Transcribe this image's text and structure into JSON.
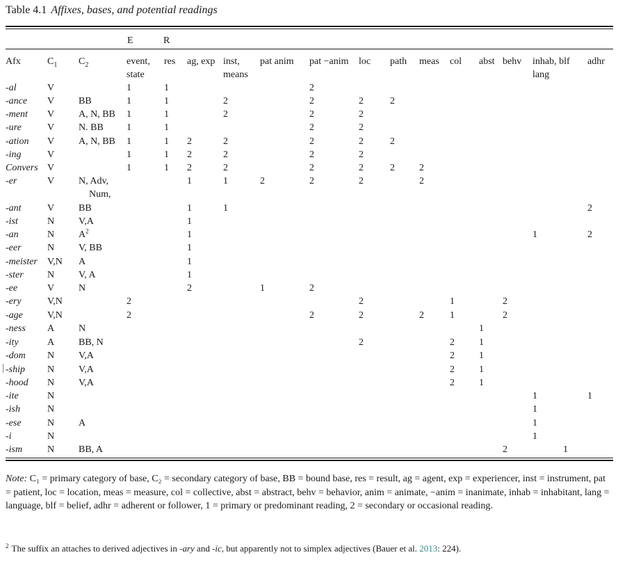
{
  "caption": {
    "label": "Table 4.1",
    "title": "Affixes, bases, and potential readings"
  },
  "headers": {
    "group": {
      "E": "E",
      "R": "R"
    },
    "afx": "Afx",
    "c1": {
      "base": "C",
      "sub": "1"
    },
    "c2": {
      "base": "C",
      "sub": "2"
    },
    "event": [
      "event,",
      "state"
    ],
    "res": "res",
    "ag_exp": "ag, exp",
    "inst": [
      "inst,",
      "means"
    ],
    "pat_anim": "pat anim",
    "pat_inanim": "pat −anim",
    "loc": "loc",
    "path": "path",
    "meas": "meas",
    "col": "col",
    "abst": "abst",
    "behv": "behv",
    "inhab": [
      "inhab, blf",
      "lang"
    ],
    "adhr": "adhr"
  },
  "columns": [
    "event",
    "res",
    "ag",
    "inst",
    "patanim",
    "patinanim",
    "loc",
    "path",
    "meas",
    "col",
    "abst",
    "behv",
    "inhab",
    "blf",
    "adhr"
  ],
  "rows": [
    {
      "afx": "-al",
      "c1": "V",
      "c2": [],
      "event": "1",
      "res": "1",
      "patinanim": "2"
    },
    {
      "afx": "-ance",
      "c1": "V",
      "c2": [
        "BB"
      ],
      "event": "1",
      "res": "1",
      "inst": "2",
      "patinanim": "2",
      "loc": "2",
      "path": "2"
    },
    {
      "afx": "-ment",
      "c1": "V",
      "c2": [
        "A, N, BB"
      ],
      "event": "1",
      "res": "1",
      "inst": "2",
      "patinanim": "2",
      "loc": "2"
    },
    {
      "afx": "-ure",
      "c1": "V",
      "c2": [
        "N. BB"
      ],
      "event": "1",
      "res": "1",
      "patinanim": "2",
      "loc": "2"
    },
    {
      "afx": "-ation",
      "c1": "V",
      "c2": [
        "A, N, BB"
      ],
      "event": "1",
      "res": "1",
      "ag": "2",
      "inst": "2",
      "patinanim": "2",
      "loc": "2",
      "path": "2"
    },
    {
      "afx": "-ing",
      "c1": "V",
      "c2": [],
      "event": "1",
      "res": "1",
      "ag": "2",
      "inst": "2",
      "patinanim": "2",
      "loc": "2"
    },
    {
      "afx": "Convers",
      "c1": "V",
      "c2": [],
      "event": "1",
      "res": "1",
      "ag": "2",
      "inst": "2",
      "patinanim": "2",
      "loc": "2",
      "path": "2",
      "meas": "2"
    },
    {
      "afx": "-er",
      "c1": "V",
      "c2": [
        "N, Adv,",
        "Num,"
      ],
      "ag": "1",
      "inst": "1",
      "patanim": "2",
      "patinanim": "2",
      "loc": "2",
      "meas": "2"
    },
    {
      "afx": "-ant",
      "c1": "V",
      "c2": [
        "BB"
      ],
      "ag": "1",
      "inst": "1",
      "adhr": "2"
    },
    {
      "afx": "-ist",
      "c1": "N",
      "c2": [
        "V,A"
      ],
      "ag": "1"
    },
    {
      "afx": "-an",
      "c1": "N",
      "c2": [
        "A"
      ],
      "c2sup": "2",
      "ag": "1",
      "inhab": "1",
      "adhr": "2"
    },
    {
      "afx": "-eer",
      "c1": "N",
      "c2": [
        "V, BB"
      ],
      "ag": "1"
    },
    {
      "afx": "-meister",
      "c1": "V,N",
      "c2": [
        "A"
      ],
      "ag": "1"
    },
    {
      "afx": "-ster",
      "c1": "N",
      "c2": [
        "V, A"
      ],
      "ag": "1"
    },
    {
      "afx": "-ee",
      "c1": "V",
      "c2": [
        "N"
      ],
      "ag": "2",
      "patanim": "1",
      "patinanim": "2"
    },
    {
      "afx": "-ery",
      "c1": "V,N",
      "c2": [],
      "event": "2",
      "loc": "2",
      "col": "1",
      "behv": "2"
    },
    {
      "afx": "-age",
      "c1": "V,N",
      "c2": [],
      "event": "2",
      "patinanim": "2",
      "loc": "2",
      "meas": "2",
      "col": "1",
      "behv": "2"
    },
    {
      "afx": "-ness",
      "c1": "A",
      "c2": [
        "N"
      ],
      "abst": "1"
    },
    {
      "afx": "-ity",
      "c1": "A",
      "c2": [
        "BB, N"
      ],
      "loc": "2",
      "col": "2",
      "abst": "1"
    },
    {
      "afx": "-dom",
      "c1": "N",
      "c2": [
        "V,A"
      ],
      "col": "2",
      "abst": "1"
    },
    {
      "afx": "-ship",
      "c1": "N",
      "c2": [
        "V,A"
      ],
      "col": "2",
      "abst": "1"
    },
    {
      "afx": "-hood",
      "c1": "N",
      "c2": [
        "V,A"
      ],
      "col": "2",
      "abst": "1"
    },
    {
      "afx": "-ite",
      "c1": "N",
      "c2": [],
      "inhab": "1",
      "adhr": "1"
    },
    {
      "afx": "-ish",
      "c1": "N",
      "c2": [],
      "inhab": "1"
    },
    {
      "afx": "-ese",
      "c1": "N",
      "c2": [
        "A"
      ],
      "inhab": "1"
    },
    {
      "afx": "-i",
      "c1": "N",
      "c2": [],
      "inhab": "1"
    },
    {
      "afx": "-ism",
      "c1": "N",
      "c2": [
        "BB, A"
      ],
      "behv": "2",
      "blf": "1"
    }
  ],
  "note": {
    "label": "Note:",
    "text": " C₁ = primary category of base, C₂ = secondary category of base, BB = bound base, res = result, ag = agent, exp = experiencer, inst = instrument, pat = patient, loc = location, meas = measure, col = collective, abst = abstract, behv = behavior, anim = animate, −anim = inanimate, inhab = inhabitant, lang = language, blf = belief, adhr = adherent or follower, 1 = primary or predominant reading, 2 = secondary or occasional reading."
  },
  "footnote": {
    "mark": "2",
    "text_before": "The suffix an attaches to derived adjectives in ",
    "ary": "-ary",
    "text_mid": " and ",
    "ic": "-ic",
    "text_after_ic": ", but apparently not to simplex adjectives (Bauer et al. ",
    "year": "2013",
    "text_end": ": 224)."
  }
}
